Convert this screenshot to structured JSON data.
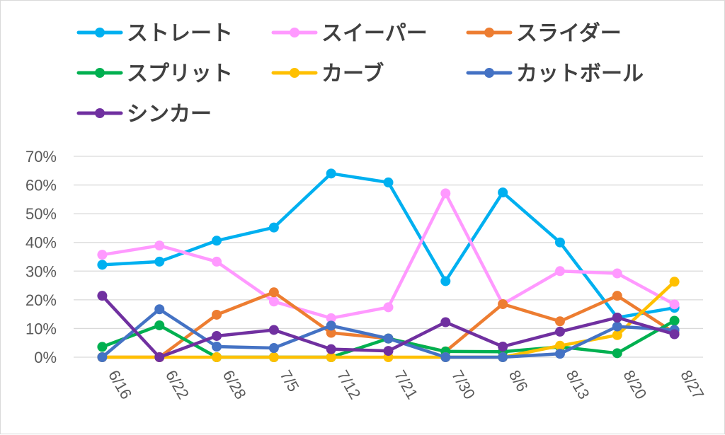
{
  "chart_data": {
    "type": "line",
    "title": "",
    "xlabel": "",
    "ylabel": "",
    "categories": [
      "6/16",
      "6/22",
      "6/28",
      "7/5",
      "7/12",
      "7/21",
      "7/30",
      "8/6",
      "8/13",
      "8/20",
      "8/27"
    ],
    "ylim": [
      0,
      0.7
    ],
    "yticks": [
      "0%",
      "10%",
      "20%",
      "30%",
      "40%",
      "50%",
      "60%",
      "70%"
    ],
    "grid": true,
    "legend_position": "top",
    "series": [
      {
        "name": "ストレート",
        "color": "#00b0f0",
        "values": [
          0.322,
          0.333,
          0.406,
          0.452,
          0.64,
          0.609,
          0.265,
          0.574,
          0.4,
          0.138,
          0.172
        ]
      },
      {
        "name": "スイーパー",
        "color": "#ff99ff",
        "values": [
          0.357,
          0.389,
          0.333,
          0.194,
          0.136,
          0.174,
          0.571,
          0.185,
          0.3,
          0.292,
          0.184
        ]
      },
      {
        "name": "スライダー",
        "color": "#ed7d31",
        "values": [
          0.0,
          0.0,
          0.148,
          0.226,
          0.085,
          0.065,
          0.02,
          0.185,
          0.125,
          0.214,
          0.085
        ]
      },
      {
        "name": "スプリット",
        "color": "#00b050",
        "values": [
          0.036,
          0.111,
          0.0,
          0.0,
          0.0,
          0.065,
          0.02,
          0.019,
          0.036,
          0.014,
          0.127
        ]
      },
      {
        "name": "カーブ",
        "color": "#ffc000",
        "values": [
          0.0,
          0.0,
          0.0,
          0.0,
          0.0,
          0.0,
          0.0,
          0.0,
          0.04,
          0.077,
          0.263
        ]
      },
      {
        "name": "カットボール",
        "color": "#4472c4",
        "values": [
          0.0,
          0.167,
          0.037,
          0.032,
          0.11,
          0.065,
          0.0,
          0.0,
          0.012,
          0.107,
          0.095
        ]
      },
      {
        "name": "シンカー",
        "color": "#7030a0",
        "values": [
          0.214,
          0.0,
          0.074,
          0.095,
          0.028,
          0.022,
          0.122,
          0.037,
          0.089,
          0.138,
          0.08
        ]
      }
    ]
  }
}
